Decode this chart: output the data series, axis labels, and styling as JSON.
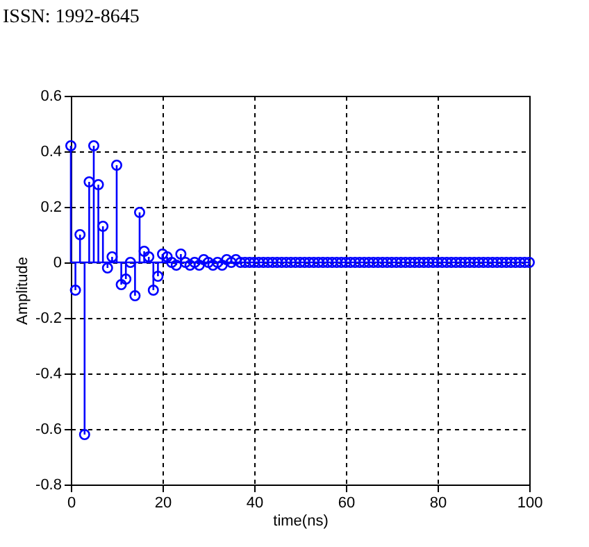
{
  "chart_data": {
    "type": "lollipop",
    "xlabel": "time(ns)",
    "ylabel": "Amplitude",
    "annotations": [
      "ISSN: 1992-8645"
    ],
    "x": [
      0,
      1,
      2,
      3,
      4,
      5,
      6,
      7,
      8,
      9,
      10,
      11,
      12,
      13,
      14,
      15,
      16,
      17,
      18,
      19,
      20,
      21,
      22,
      23,
      24,
      25,
      26,
      27,
      28,
      29,
      30,
      31,
      32,
      33,
      34,
      35,
      36,
      37,
      38,
      39,
      40,
      41,
      42,
      43,
      44,
      45,
      46,
      47,
      48,
      49,
      50,
      51,
      52,
      53,
      54,
      55,
      56,
      57,
      58,
      59,
      60,
      61,
      62,
      63,
      64,
      65,
      66,
      67,
      68,
      69,
      70,
      71,
      72,
      73,
      74,
      75,
      76,
      77,
      78,
      79,
      80,
      81,
      82,
      83,
      84,
      85,
      86,
      87,
      88,
      89,
      90,
      91,
      92,
      93,
      94,
      95,
      96,
      97,
      98,
      99,
      100
    ],
    "series": [
      {
        "color": "#0000ff",
        "values": [
          0.42,
          -0.1,
          0.1,
          -0.62,
          0.29,
          0.42,
          0.28,
          0.13,
          -0.02,
          0.02,
          0.35,
          -0.08,
          -0.06,
          0.0,
          -0.12,
          0.18,
          0.04,
          0.02,
          -0.1,
          -0.05,
          0.03,
          0.02,
          0.0,
          -0.01,
          0.03,
          0.0,
          -0.01,
          0.0,
          -0.01,
          0.01,
          0.0,
          -0.01,
          0.0,
          -0.01,
          0.01,
          0.0,
          0.01,
          0.0,
          0.0,
          0.0,
          0,
          0,
          0,
          0,
          0,
          0,
          0,
          0,
          0,
          0,
          0,
          0,
          0,
          0,
          0,
          0,
          0,
          0,
          0,
          0,
          0,
          0,
          0,
          0,
          0,
          0,
          0,
          0,
          0,
          0,
          0,
          0,
          0,
          0,
          0,
          0,
          0,
          0,
          0,
          0,
          0,
          0,
          0,
          0,
          0,
          0,
          0,
          0,
          0,
          0,
          0,
          0,
          0,
          0,
          0,
          0,
          0,
          0,
          0,
          0,
          0
        ]
      }
    ],
    "xlim": [
      0,
      100
    ],
    "xticks": [
      0,
      20,
      40,
      60,
      80,
      100
    ],
    "ylim": [
      -0.8,
      0.6
    ],
    "yticks": [
      -0.8,
      -0.6,
      -0.4,
      -0.2,
      0,
      0.2,
      0.4,
      0.6
    ],
    "ref_lines": [
      {
        "axis": "y",
        "value": 0,
        "color": "#0000ff"
      }
    ],
    "grid": true,
    "marker": "circle",
    "line_style": "solid"
  }
}
